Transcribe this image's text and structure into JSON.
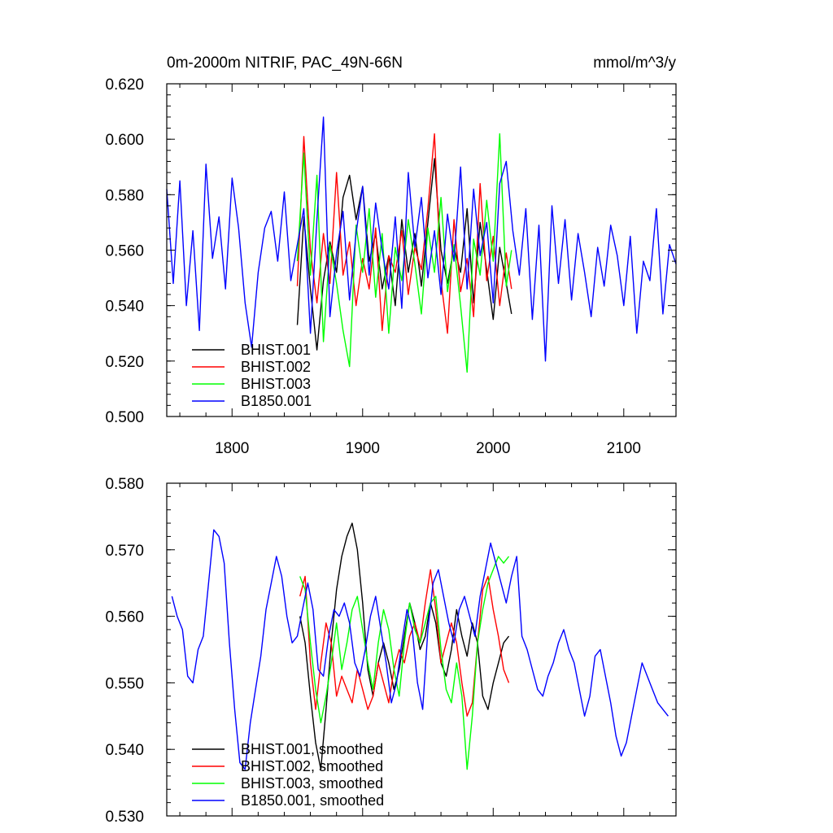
{
  "chart_data": [
    {
      "type": "line",
      "title_left": "0m-2000m NITRIF, PAC_49N-66N",
      "title_right": "mmol/m^3/y",
      "xlim": [
        1750,
        2140
      ],
      "ylim": [
        0.5,
        0.62
      ],
      "y_major_ticks": [
        0.5,
        0.52,
        0.54,
        0.56,
        0.58,
        0.6,
        0.62
      ],
      "y_tick_labels": [
        "0.500",
        "0.520",
        "0.540",
        "0.560",
        "0.580",
        "0.600",
        "0.620"
      ],
      "x_major_ticks": [
        1800,
        1900,
        2000,
        2100
      ],
      "x_tick_labels": [
        "1800",
        "1900",
        "2000",
        "2100"
      ],
      "legend_position": "bottom-left",
      "series": [
        {
          "name": "BHIST.001",
          "color": "#000000",
          "x": [
            1850,
            1855,
            1860,
            1865,
            1870,
            1875,
            1880,
            1885,
            1890,
            1895,
            1900,
            1905,
            1910,
            1915,
            1920,
            1925,
            1930,
            1935,
            1940,
            1945,
            1950,
            1955,
            1960,
            1965,
            1970,
            1975,
            1980,
            1985,
            1990,
            1995,
            2000,
            2005,
            2010,
            2014
          ],
          "values": [
            0.533,
            0.572,
            0.546,
            0.524,
            0.549,
            0.563,
            0.552,
            0.579,
            0.587,
            0.571,
            0.583,
            0.556,
            0.566,
            0.546,
            0.558,
            0.54,
            0.571,
            0.552,
            0.566,
            0.547,
            0.57,
            0.593,
            0.56,
            0.548,
            0.561,
            0.552,
            0.575,
            0.541,
            0.57,
            0.553,
            0.535,
            0.561,
            0.548,
            0.537
          ]
        },
        {
          "name": "BHIST.002",
          "color": "#ff0000",
          "x": [
            1850,
            1855,
            1860,
            1865,
            1870,
            1875,
            1880,
            1885,
            1890,
            1895,
            1900,
            1905,
            1910,
            1915,
            1920,
            1925,
            1930,
            1935,
            1940,
            1945,
            1950,
            1955,
            1960,
            1965,
            1970,
            1975,
            1980,
            1985,
            1990,
            1995,
            2000,
            2005,
            2010,
            2014
          ],
          "values": [
            0.547,
            0.601,
            0.56,
            0.541,
            0.566,
            0.548,
            0.588,
            0.551,
            0.563,
            0.54,
            0.557,
            0.546,
            0.568,
            0.531,
            0.558,
            0.552,
            0.567,
            0.544,
            0.561,
            0.553,
            0.575,
            0.602,
            0.549,
            0.53,
            0.571,
            0.545,
            0.557,
            0.536,
            0.584,
            0.549,
            0.565,
            0.54,
            0.559,
            0.546
          ]
        },
        {
          "name": "BHIST.003",
          "color": "#00ff00",
          "x": [
            1850,
            1855,
            1860,
            1865,
            1870,
            1875,
            1880,
            1885,
            1890,
            1895,
            1900,
            1905,
            1910,
            1915,
            1920,
            1925,
            1930,
            1935,
            1940,
            1945,
            1950,
            1955,
            1960,
            1965,
            1970,
            1975,
            1980,
            1985,
            1990,
            1995,
            2000,
            2005,
            2010,
            2014
          ],
          "values": [
            0.556,
            0.595,
            0.551,
            0.587,
            0.527,
            0.562,
            0.548,
            0.531,
            0.518,
            0.569,
            0.552,
            0.575,
            0.543,
            0.566,
            0.53,
            0.561,
            0.549,
            0.571,
            0.555,
            0.537,
            0.568,
            0.552,
            0.579,
            0.545,
            0.562,
            0.54,
            0.516,
            0.564,
            0.551,
            0.578,
            0.556,
            0.602,
            0.547,
            0.56
          ]
        },
        {
          "name": "B1850.001",
          "color": "#0000ff",
          "x": [
            1750,
            1755,
            1760,
            1765,
            1770,
            1775,
            1780,
            1785,
            1790,
            1795,
            1800,
            1805,
            1810,
            1815,
            1820,
            1825,
            1830,
            1835,
            1840,
            1845,
            1850,
            1855,
            1860,
            1865,
            1870,
            1875,
            1880,
            1885,
            1890,
            1895,
            1900,
            1905,
            1910,
            1915,
            1920,
            1925,
            1930,
            1935,
            1940,
            1945,
            1950,
            1955,
            1960,
            1965,
            1970,
            1975,
            1980,
            1985,
            1990,
            1995,
            2000,
            2005,
            2010,
            2015,
            2020,
            2025,
            2030,
            2035,
            2040,
            2045,
            2050,
            2055,
            2060,
            2065,
            2070,
            2075,
            2080,
            2085,
            2090,
            2095,
            2100,
            2105,
            2110,
            2115,
            2120,
            2125,
            2130,
            2135,
            2140
          ],
          "values": [
            0.582,
            0.548,
            0.585,
            0.54,
            0.567,
            0.531,
            0.591,
            0.557,
            0.572,
            0.546,
            0.586,
            0.568,
            0.541,
            0.525,
            0.552,
            0.568,
            0.574,
            0.556,
            0.581,
            0.549,
            0.562,
            0.575,
            0.53,
            0.571,
            0.608,
            0.536,
            0.559,
            0.574,
            0.542,
            0.566,
            0.583,
            0.551,
            0.577,
            0.56,
            0.546,
            0.572,
            0.539,
            0.588,
            0.561,
            0.579,
            0.55,
            0.567,
            0.544,
            0.573,
            0.556,
            0.59,
            0.546,
            0.582,
            0.558,
            0.57,
            0.541,
            0.584,
            0.592,
            0.567,
            0.551,
            0.575,
            0.535,
            0.569,
            0.52,
            0.576,
            0.548,
            0.571,
            0.542,
            0.566,
            0.552,
            0.536,
            0.561,
            0.547,
            0.569,
            0.558,
            0.54,
            0.565,
            0.53,
            0.556,
            0.549,
            0.575,
            0.537,
            0.562,
            0.555
          ]
        }
      ],
      "legend_labels": [
        "BHIST.001",
        "BHIST.002",
        "BHIST.003",
        "B1850.001"
      ]
    },
    {
      "type": "line",
      "xlim": [
        1750,
        2140
      ],
      "ylim": [
        0.53,
        0.58
      ],
      "y_major_ticks": [
        0.53,
        0.54,
        0.55,
        0.56,
        0.57,
        0.58
      ],
      "y_tick_labels": [
        "0.530",
        "0.540",
        "0.550",
        "0.560",
        "0.570",
        "0.580"
      ],
      "x_major_ticks": [
        1800,
        1900,
        2000,
        2100
      ],
      "legend_position": "bottom-left",
      "series": [
        {
          "name": "BHIST.001, smoothed",
          "color": "#000000",
          "x": [
            1852,
            1856,
            1860,
            1864,
            1868,
            1872,
            1876,
            1880,
            1884,
            1888,
            1892,
            1896,
            1900,
            1904,
            1908,
            1912,
            1916,
            1920,
            1924,
            1928,
            1932,
            1936,
            1940,
            1944,
            1948,
            1952,
            1956,
            1960,
            1964,
            1968,
            1972,
            1976,
            1980,
            1984,
            1988,
            1992,
            1996,
            2000,
            2004,
            2008,
            2012
          ],
          "values": [
            0.56,
            0.556,
            0.548,
            0.541,
            0.537,
            0.546,
            0.556,
            0.564,
            0.569,
            0.572,
            0.574,
            0.57,
            0.562,
            0.552,
            0.548,
            0.553,
            0.556,
            0.553,
            0.549,
            0.552,
            0.557,
            0.562,
            0.559,
            0.555,
            0.557,
            0.562,
            0.559,
            0.553,
            0.551,
            0.555,
            0.561,
            0.557,
            0.554,
            0.559,
            0.556,
            0.548,
            0.546,
            0.55,
            0.553,
            0.556,
            0.557
          ]
        },
        {
          "name": "BHIST.002, smoothed",
          "color": "#ff0000",
          "x": [
            1852,
            1856,
            1860,
            1864,
            1868,
            1872,
            1876,
            1880,
            1884,
            1888,
            1892,
            1896,
            1900,
            1904,
            1908,
            1912,
            1916,
            1920,
            1924,
            1928,
            1932,
            1936,
            1940,
            1944,
            1948,
            1952,
            1956,
            1960,
            1964,
            1968,
            1972,
            1976,
            1980,
            1984,
            1988,
            1992,
            1996,
            2000,
            2004,
            2008,
            2012
          ],
          "values": [
            0.563,
            0.566,
            0.553,
            0.546,
            0.553,
            0.559,
            0.556,
            0.548,
            0.551,
            0.549,
            0.547,
            0.552,
            0.549,
            0.546,
            0.548,
            0.553,
            0.55,
            0.547,
            0.552,
            0.555,
            0.553,
            0.557,
            0.559,
            0.556,
            0.562,
            0.567,
            0.561,
            0.553,
            0.556,
            0.559,
            0.556,
            0.55,
            0.545,
            0.547,
            0.556,
            0.564,
            0.566,
            0.561,
            0.557,
            0.552,
            0.55
          ]
        },
        {
          "name": "BHIST.003, smoothed",
          "color": "#00ff00",
          "x": [
            1852,
            1856,
            1860,
            1864,
            1868,
            1872,
            1876,
            1880,
            1884,
            1888,
            1892,
            1896,
            1900,
            1904,
            1908,
            1912,
            1916,
            1920,
            1924,
            1928,
            1932,
            1936,
            1940,
            1944,
            1948,
            1952,
            1956,
            1960,
            1964,
            1968,
            1972,
            1976,
            1980,
            1984,
            1988,
            1992,
            1996,
            2000,
            2004,
            2008,
            2012
          ],
          "values": [
            0.566,
            0.564,
            0.556,
            0.549,
            0.544,
            0.548,
            0.553,
            0.559,
            0.552,
            0.556,
            0.561,
            0.563,
            0.558,
            0.553,
            0.549,
            0.556,
            0.561,
            0.558,
            0.552,
            0.548,
            0.556,
            0.562,
            0.558,
            0.556,
            0.559,
            0.562,
            0.563,
            0.555,
            0.549,
            0.547,
            0.553,
            0.548,
            0.537,
            0.545,
            0.556,
            0.561,
            0.565,
            0.567,
            0.569,
            0.568,
            0.569
          ]
        },
        {
          "name": "B1850.001, smoothed",
          "color": "#0000ff",
          "x": [
            1754,
            1758,
            1762,
            1766,
            1770,
            1774,
            1778,
            1782,
            1786,
            1790,
            1794,
            1798,
            1802,
            1806,
            1810,
            1814,
            1818,
            1822,
            1826,
            1830,
            1834,
            1838,
            1842,
            1846,
            1850,
            1854,
            1858,
            1862,
            1866,
            1870,
            1874,
            1878,
            1882,
            1886,
            1890,
            1894,
            1898,
            1902,
            1906,
            1910,
            1914,
            1918,
            1922,
            1926,
            1930,
            1934,
            1938,
            1942,
            1946,
            1950,
            1954,
            1958,
            1962,
            1966,
            1970,
            1974,
            1978,
            1982,
            1986,
            1990,
            1994,
            1998,
            2002,
            2006,
            2010,
            2014,
            2018,
            2022,
            2026,
            2030,
            2034,
            2038,
            2042,
            2046,
            2050,
            2054,
            2058,
            2062,
            2066,
            2070,
            2074,
            2078,
            2082,
            2086,
            2090,
            2094,
            2098,
            2102,
            2106,
            2110,
            2114,
            2118,
            2122,
            2126,
            2130,
            2134
          ],
          "values": [
            0.563,
            0.56,
            0.558,
            0.551,
            0.55,
            0.555,
            0.557,
            0.565,
            0.573,
            0.572,
            0.568,
            0.556,
            0.546,
            0.538,
            0.537,
            0.544,
            0.549,
            0.554,
            0.561,
            0.565,
            0.569,
            0.566,
            0.56,
            0.556,
            0.557,
            0.561,
            0.565,
            0.561,
            0.552,
            0.551,
            0.557,
            0.561,
            0.56,
            0.562,
            0.559,
            0.553,
            0.551,
            0.555,
            0.56,
            0.563,
            0.558,
            0.553,
            0.547,
            0.55,
            0.556,
            0.561,
            0.558,
            0.55,
            0.546,
            0.558,
            0.565,
            0.567,
            0.563,
            0.559,
            0.556,
            0.561,
            0.563,
            0.56,
            0.557,
            0.563,
            0.567,
            0.571,
            0.568,
            0.565,
            0.562,
            0.566,
            0.569,
            0.557,
            0.555,
            0.552,
            0.549,
            0.548,
            0.551,
            0.553,
            0.556,
            0.558,
            0.555,
            0.553,
            0.549,
            0.545,
            0.548,
            0.554,
            0.555,
            0.551,
            0.547,
            0.542,
            0.539,
            0.541,
            0.545,
            0.549,
            0.553,
            0.551,
            0.549,
            0.547,
            0.546,
            0.545
          ]
        }
      ],
      "legend_labels": [
        "BHIST.001, smoothed",
        "BHIST.002, smoothed",
        "BHIST.003, smoothed",
        "B1850.001, smoothed"
      ]
    }
  ]
}
